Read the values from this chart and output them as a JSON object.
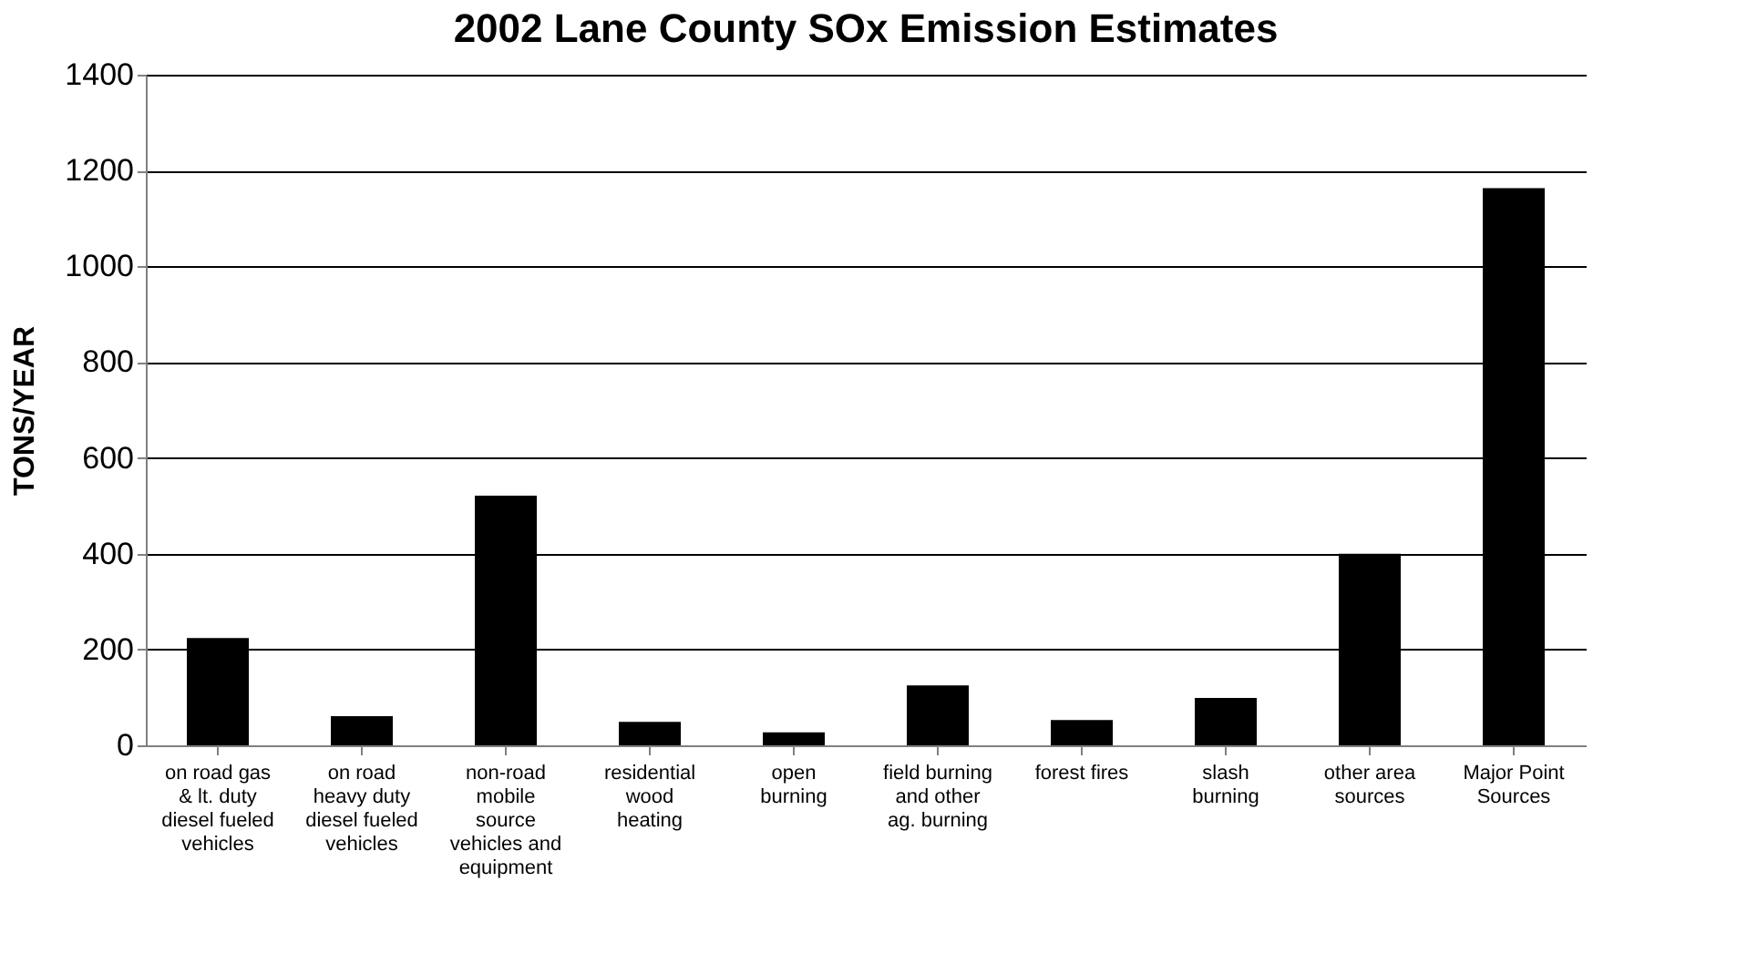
{
  "chart_data": {
    "type": "bar",
    "title": "2002 Lane County SOx Emission Estimates",
    "ylabel": "TONS/YEAR",
    "categories": [
      "on  road gas\n& lt. duty\ndiesel fueled\nvehicles",
      "on road\nheavy duty\ndiesel fueled\nvehicles",
      "non-road\nmobile\nsource\nvehicles and\nequipment",
      "residential\nwood\nheating",
      "open\nburning",
      "field burning\nand other\nag. burning",
      "forest fires",
      "slash\nburning",
      "other area\nsources",
      "Major Point\nSources"
    ],
    "values": [
      224,
      61,
      521,
      49,
      27,
      125,
      53,
      99,
      400,
      1163
    ],
    "color": "#000000",
    "ylim": [
      0,
      1400
    ],
    "yticks": [
      0,
      200,
      400,
      600,
      800,
      1000,
      1200,
      1400
    ],
    "grid": "y"
  }
}
